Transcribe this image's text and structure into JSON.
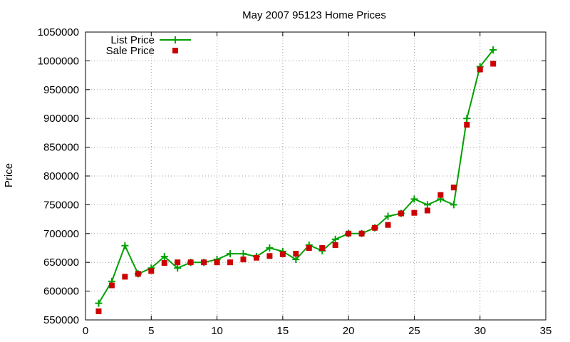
{
  "chart_data": {
    "type": "line",
    "title": "May 2007 95123 Home Prices",
    "xlabel": "",
    "ylabel": "Price",
    "xlim": [
      0,
      35
    ],
    "ylim": [
      550000,
      1050000
    ],
    "xticks": [
      0,
      5,
      10,
      15,
      20,
      25,
      30,
      35
    ],
    "yticks": [
      550000,
      600000,
      650000,
      700000,
      750000,
      800000,
      850000,
      900000,
      950000,
      1000000,
      1050000
    ],
    "grid": true,
    "legend_position": "top-left",
    "series": [
      {
        "name": "List Price",
        "style": "line+cross",
        "color": "#00a000",
        "x": [
          1,
          2,
          3,
          4,
          5,
          6,
          7,
          8,
          9,
          10,
          11,
          12,
          13,
          14,
          15,
          16,
          17,
          18,
          19,
          20,
          21,
          22,
          23,
          24,
          25,
          26,
          27,
          28,
          29,
          30,
          31
        ],
        "y": [
          579000,
          617000,
          679000,
          630000,
          640000,
          660000,
          640000,
          650000,
          650000,
          655000,
          665000,
          665000,
          660000,
          675000,
          669000,
          655000,
          680000,
          670000,
          690000,
          700000,
          700000,
          710000,
          730000,
          735000,
          760000,
          750000,
          760000,
          750000,
          900000,
          990000,
          1019000
        ]
      },
      {
        "name": "Sale Price",
        "style": "square",
        "color": "#cc0000",
        "x": [
          1,
          2,
          3,
          4,
          5,
          6,
          7,
          8,
          9,
          10,
          11,
          12,
          13,
          14,
          15,
          16,
          17,
          18,
          19,
          20,
          21,
          22,
          23,
          24,
          25,
          26,
          27,
          28,
          29,
          30,
          31
        ],
        "y": [
          565000,
          610000,
          625000,
          630000,
          635000,
          649000,
          650000,
          650000,
          650000,
          650000,
          650000,
          655000,
          658000,
          661000,
          664000,
          665000,
          675000,
          675000,
          680000,
          700000,
          700000,
          710000,
          715000,
          735000,
          736000,
          740000,
          767000,
          780000,
          889000,
          985000,
          995000
        ]
      }
    ]
  }
}
